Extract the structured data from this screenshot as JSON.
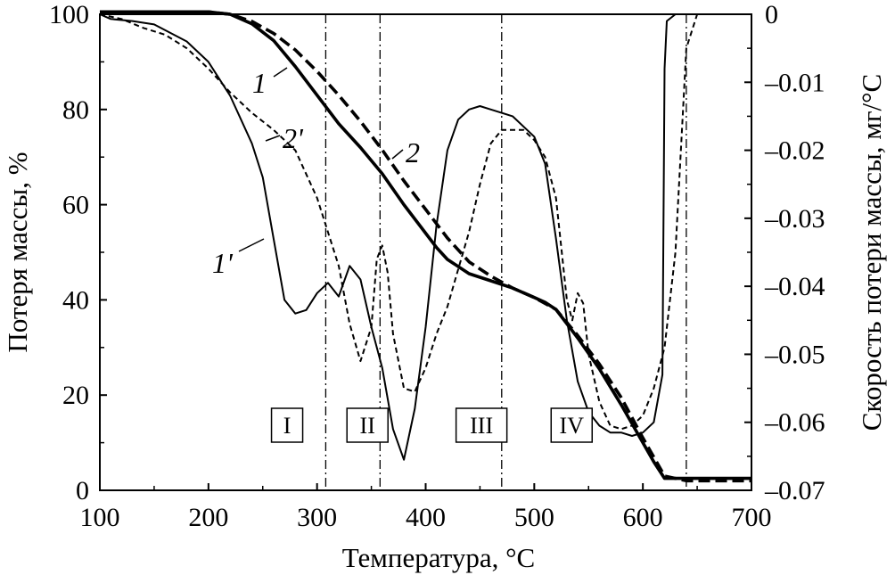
{
  "chart_data": {
    "type": "line",
    "title": "",
    "xlabel": "Температура, °C",
    "ylabel_left": "Потеря массы, %",
    "ylabel_right": "Скорость потери массы, мг/°C",
    "xlim": [
      100,
      700
    ],
    "ylim_left": [
      0,
      100
    ],
    "ylim_right": [
      -0.07,
      0
    ],
    "x_ticks": [
      100,
      200,
      300,
      400,
      500,
      600,
      700
    ],
    "x_tick_labels": [
      "100",
      "200",
      "300",
      "400",
      "500",
      "600",
      "700"
    ],
    "y_left_ticks": [
      0,
      20,
      40,
      60,
      80,
      100
    ],
    "y_left_tick_labels": [
      "0",
      "20",
      "40",
      "60",
      "80",
      "100"
    ],
    "y_right_ticks": [
      0,
      -0.01,
      -0.02,
      -0.03,
      -0.04,
      -0.05,
      -0.06,
      -0.07
    ],
    "y_right_tick_labels": [
      "0",
      "–0.01",
      "–0.02",
      "–0.03",
      "–0.04",
      "–0.05",
      "–0.06",
      "–0.07"
    ],
    "grid": false,
    "series": [
      {
        "name": "1",
        "axis": "left",
        "style": "solid-bold",
        "points": [
          [
            100,
            100.5
          ],
          [
            150,
            100.5
          ],
          [
            200,
            100.5
          ],
          [
            220,
            100
          ],
          [
            240,
            98
          ],
          [
            260,
            94.5
          ],
          [
            280,
            89
          ],
          [
            300,
            83
          ],
          [
            320,
            77
          ],
          [
            340,
            72
          ],
          [
            360,
            66.5
          ],
          [
            380,
            60
          ],
          [
            400,
            54
          ],
          [
            410,
            51
          ],
          [
            420,
            48.5
          ],
          [
            440,
            45.5
          ],
          [
            460,
            44
          ],
          [
            480,
            42.5
          ],
          [
            500,
            40.5
          ],
          [
            510,
            39.5
          ],
          [
            520,
            38
          ],
          [
            540,
            32
          ],
          [
            560,
            25.5
          ],
          [
            580,
            18
          ],
          [
            600,
            10
          ],
          [
            610,
            6
          ],
          [
            620,
            2.5
          ],
          [
            640,
            2.5
          ],
          [
            700,
            2.5
          ]
        ]
      },
      {
        "name": "2",
        "axis": "left",
        "style": "dashed-bold",
        "points": [
          [
            100,
            100.5
          ],
          [
            150,
            100.5
          ],
          [
            200,
            100.5
          ],
          [
            220,
            100
          ],
          [
            240,
            98.5
          ],
          [
            260,
            96
          ],
          [
            280,
            92.5
          ],
          [
            300,
            88
          ],
          [
            320,
            83
          ],
          [
            340,
            77.5
          ],
          [
            360,
            71.5
          ],
          [
            380,
            65
          ],
          [
            400,
            59
          ],
          [
            420,
            53
          ],
          [
            440,
            48
          ],
          [
            460,
            45
          ],
          [
            480,
            42.5
          ],
          [
            500,
            40.5
          ],
          [
            520,
            38
          ],
          [
            540,
            32.5
          ],
          [
            560,
            26.5
          ],
          [
            580,
            19.5
          ],
          [
            600,
            11
          ],
          [
            620,
            3
          ],
          [
            640,
            2
          ],
          [
            700,
            2
          ]
        ]
      },
      {
        "name": "1'",
        "axis": "right",
        "style": "solid-thin",
        "points": [
          [
            100,
            0
          ],
          [
            110,
            -0.0007
          ],
          [
            130,
            -0.001
          ],
          [
            150,
            -0.0015
          ],
          [
            180,
            -0.004
          ],
          [
            200,
            -0.007
          ],
          [
            220,
            -0.012
          ],
          [
            240,
            -0.019
          ],
          [
            250,
            -0.024
          ],
          [
            260,
            -0.033
          ],
          [
            270,
            -0.042
          ],
          [
            280,
            -0.044
          ],
          [
            290,
            -0.0435
          ],
          [
            300,
            -0.041
          ],
          [
            310,
            -0.0395
          ],
          [
            320,
            -0.0415
          ],
          [
            330,
            -0.037
          ],
          [
            340,
            -0.039
          ],
          [
            350,
            -0.046
          ],
          [
            360,
            -0.052
          ],
          [
            370,
            -0.061
          ],
          [
            380,
            -0.0655
          ],
          [
            390,
            -0.058
          ],
          [
            400,
            -0.046
          ],
          [
            410,
            -0.031
          ],
          [
            420,
            -0.02
          ],
          [
            430,
            -0.0155
          ],
          [
            440,
            -0.014
          ],
          [
            450,
            -0.0135
          ],
          [
            460,
            -0.014
          ],
          [
            480,
            -0.015
          ],
          [
            500,
            -0.018
          ],
          [
            510,
            -0.022
          ],
          [
            520,
            -0.033
          ],
          [
            530,
            -0.045
          ],
          [
            540,
            -0.054
          ],
          [
            550,
            -0.0585
          ],
          [
            560,
            -0.0605
          ],
          [
            570,
            -0.0615
          ],
          [
            580,
            -0.0615
          ],
          [
            590,
            -0.062
          ],
          [
            600,
            -0.0615
          ],
          [
            610,
            -0.06
          ],
          [
            618,
            -0.053
          ],
          [
            620,
            -0.008
          ],
          [
            622,
            -0.001
          ],
          [
            630,
            0
          ],
          [
            650,
            0
          ],
          [
            670,
            0
          ],
          [
            700,
            0
          ]
        ]
      },
      {
        "name": "2'",
        "axis": "right",
        "style": "dashed-thin",
        "points": [
          [
            100,
            0
          ],
          [
            120,
            -0.0007
          ],
          [
            140,
            -0.002
          ],
          [
            160,
            -0.003
          ],
          [
            180,
            -0.005
          ],
          [
            200,
            -0.008
          ],
          [
            220,
            -0.0115
          ],
          [
            240,
            -0.0145
          ],
          [
            260,
            -0.017
          ],
          [
            280,
            -0.02
          ],
          [
            300,
            -0.027
          ],
          [
            320,
            -0.037
          ],
          [
            330,
            -0.0455
          ],
          [
            340,
            -0.051
          ],
          [
            350,
            -0.046
          ],
          [
            355,
            -0.036
          ],
          [
            360,
            -0.034
          ],
          [
            365,
            -0.038
          ],
          [
            370,
            -0.047
          ],
          [
            380,
            -0.055
          ],
          [
            390,
            -0.0555
          ],
          [
            400,
            -0.052
          ],
          [
            410,
            -0.047
          ],
          [
            420,
            -0.043
          ],
          [
            430,
            -0.0375
          ],
          [
            440,
            -0.032
          ],
          [
            450,
            -0.025
          ],
          [
            460,
            -0.019
          ],
          [
            470,
            -0.017
          ],
          [
            480,
            -0.017
          ],
          [
            490,
            -0.017
          ],
          [
            500,
            -0.0185
          ],
          [
            510,
            -0.021
          ],
          [
            520,
            -0.027
          ],
          [
            530,
            -0.042
          ],
          [
            535,
            -0.045
          ],
          [
            540,
            -0.041
          ],
          [
            545,
            -0.0425
          ],
          [
            550,
            -0.05
          ],
          [
            560,
            -0.057
          ],
          [
            570,
            -0.0605
          ],
          [
            580,
            -0.061
          ],
          [
            590,
            -0.0605
          ],
          [
            600,
            -0.059
          ],
          [
            610,
            -0.055
          ],
          [
            620,
            -0.049
          ],
          [
            630,
            -0.035
          ],
          [
            635,
            -0.02
          ],
          [
            640,
            -0.005
          ],
          [
            650,
            0
          ],
          [
            700,
            0
          ]
        ]
      }
    ],
    "curve_labels": [
      "1",
      "2",
      "1'",
      "2'"
    ],
    "stage_boundaries": [
      308,
      358,
      470,
      640
    ],
    "stages": [
      {
        "label": "I",
        "x": 256
      },
      {
        "label": "II",
        "x": 330
      },
      {
        "label": "III",
        "x": 435
      },
      {
        "label": "IV",
        "x": 518
      }
    ]
  }
}
